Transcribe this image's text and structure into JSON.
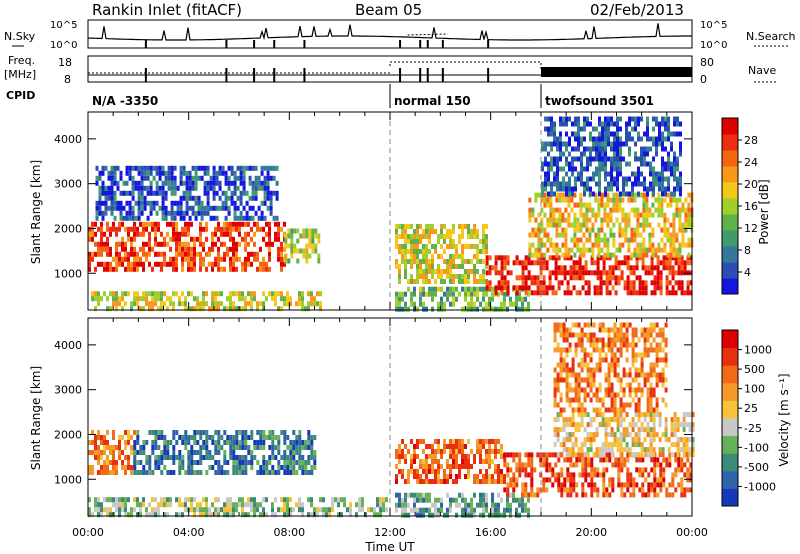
{
  "header": {
    "station": "Rankin Inlet (fitACF)",
    "beam": "Beam 05",
    "date": "02/Feb/2013"
  },
  "summary": {
    "nsky_label": "N.Sky",
    "nsky_ticks": [
      "10^5",
      "10^0"
    ],
    "nsearch_label": "N.Search",
    "freq_label": "Freq.",
    "freq_unit": "[MHz]",
    "freq_ticks": [
      "18",
      "8"
    ],
    "nave_label": "Nave",
    "nave_ticks": [
      "80",
      "0"
    ],
    "cpid_label": "CPID",
    "cpid_segments": [
      {
        "text": "N/A -3350",
        "start_h": 0,
        "end_h": 12
      },
      {
        "text": "normal 150",
        "start_h": 12,
        "end_h": 18
      },
      {
        "text": "twofsound 3501",
        "start_h": 18,
        "end_h": 24
      }
    ]
  },
  "chart_data": [
    {
      "type": "heatmap",
      "parameter": "Power",
      "ylabel": "Slant Range [km]",
      "xlabel": "Time UT",
      "xlim_h": [
        0,
        24
      ],
      "ylim": [
        180,
        4600
      ],
      "x_ticks": [
        "00:00",
        "04:00",
        "08:00",
        "12:00",
        "16:00",
        "20:00",
        "00:00"
      ],
      "y_ticks": [
        1000,
        2000,
        3000,
        4000
      ],
      "colorbar": {
        "label": "Power [dB]",
        "ticks": [
          "4",
          "8",
          "12",
          "16",
          "20",
          "24",
          "28"
        ],
        "colors": [
          "#1515e0",
          "#2b4fb0",
          "#33789a",
          "#3f9a6e",
          "#62b24c",
          "#9fcf2c",
          "#f2c81a",
          "#f9981a",
          "#f66512",
          "#ee2d10",
          "#e00000"
        ]
      },
      "echo_regions": [
        {
          "t0": 0.0,
          "t1": 7.8,
          "r0": 1100,
          "r1": 2150,
          "level": 0.85
        },
        {
          "t0": 0.0,
          "t1": 9.2,
          "r0": 180,
          "r1": 600,
          "level": 0.55
        },
        {
          "t0": 0.3,
          "t1": 7.5,
          "r0": 2200,
          "r1": 3400,
          "level": 0.15
        },
        {
          "t0": 7.8,
          "t1": 9.2,
          "r0": 1300,
          "r1": 2000,
          "level": 0.5
        },
        {
          "t0": 12.2,
          "t1": 15.8,
          "r0": 800,
          "r1": 2100,
          "level": 0.55
        },
        {
          "t0": 12.2,
          "t1": 17.5,
          "r0": 180,
          "r1": 700,
          "level": 0.4
        },
        {
          "t0": 15.8,
          "t1": 24.0,
          "r0": 600,
          "r1": 1400,
          "level": 0.9
        },
        {
          "t0": 17.5,
          "t1": 24.0,
          "r0": 1400,
          "r1": 2800,
          "level": 0.6
        },
        {
          "t0": 18.0,
          "t1": 23.5,
          "r0": 2800,
          "r1": 4500,
          "level": 0.15
        }
      ]
    },
    {
      "type": "heatmap",
      "parameter": "Velocity",
      "ylabel": "Slant Range [km]",
      "xlabel": "Time UT",
      "xlim_h": [
        0,
        24
      ],
      "ylim": [
        180,
        4600
      ],
      "x_ticks": [
        "00:00",
        "04:00",
        "08:00",
        "12:00",
        "16:00",
        "20:00",
        "00:00"
      ],
      "y_ticks": [
        1000,
        2000,
        3000,
        4000
      ],
      "colorbar": {
        "label": "Velocity [m s⁻¹]",
        "ticks": [
          "1000",
          "500",
          "100",
          "25",
          "-25",
          "-100",
          "-500",
          "-1000"
        ],
        "colors": [
          "#1438b8",
          "#2f64a8",
          "#3d8a78",
          "#66b05a",
          "#c8c8c8",
          "#f5c23a",
          "#f59a28",
          "#f06a18",
          "#e83010",
          "#dd0000"
        ]
      },
      "echo_regions": [
        {
          "t0": 0.0,
          "t1": 1.8,
          "r0": 1200,
          "r1": 2100,
          "level": 0.72
        },
        {
          "t0": 1.8,
          "t1": 9.0,
          "r0": 1200,
          "r1": 2100,
          "level": 0.2
        },
        {
          "t0": 0.0,
          "t1": 12.0,
          "r0": 180,
          "r1": 600,
          "level": 0.4
        },
        {
          "t0": 12.2,
          "t1": 16.5,
          "r0": 900,
          "r1": 1900,
          "level": 0.75
        },
        {
          "t0": 12.2,
          "t1": 17.5,
          "r0": 180,
          "r1": 700,
          "level": 0.3
        },
        {
          "t0": 16.5,
          "t1": 24.0,
          "r0": 600,
          "r1": 1600,
          "level": 0.8
        },
        {
          "t0": 18.5,
          "t1": 24.0,
          "r0": 1600,
          "r1": 2500,
          "level": 0.55
        },
        {
          "t0": 18.5,
          "t1": 23.0,
          "r0": 2500,
          "r1": 4500,
          "level": 0.72
        }
      ]
    }
  ]
}
